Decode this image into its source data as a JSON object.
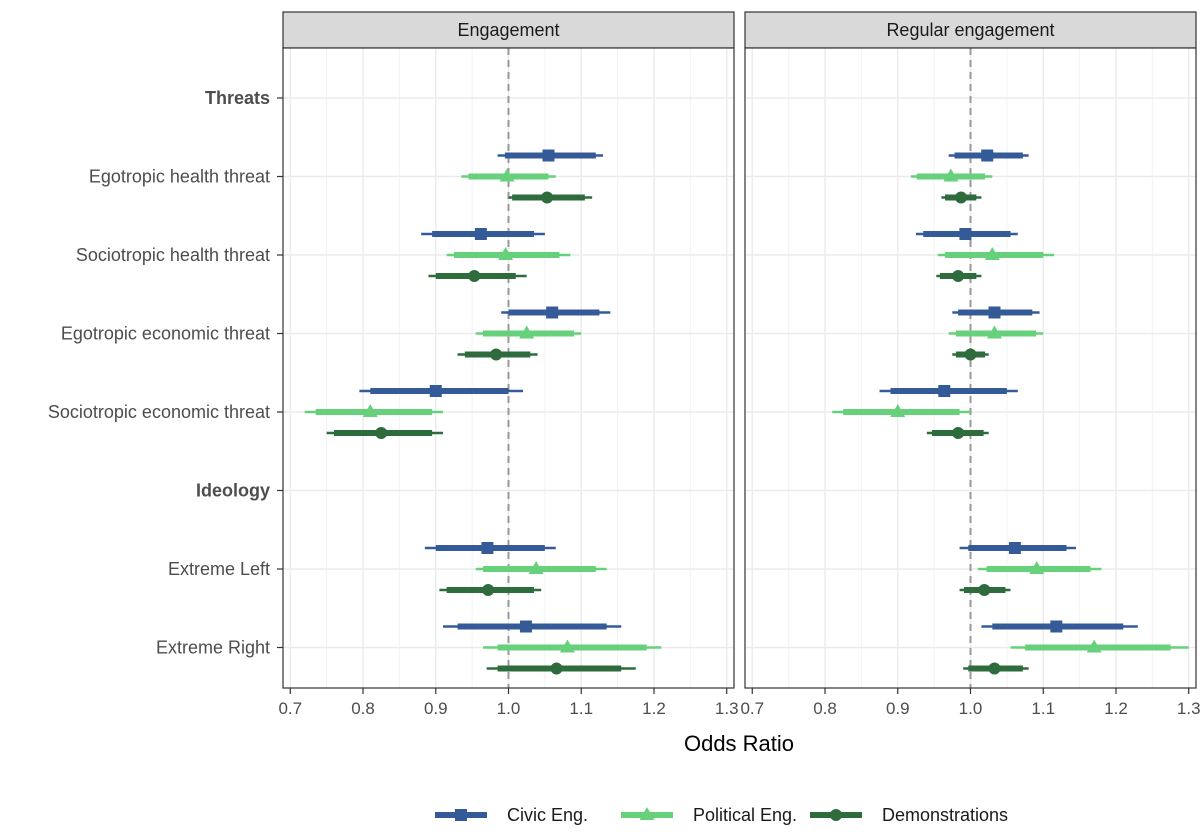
{
  "chart_data": {
    "type": "forest",
    "xlabel": "Odds Ratio",
    "xlim": [
      0.69,
      1.31
    ],
    "x_ticks": [
      0.7,
      0.8,
      0.9,
      1.0,
      1.1,
      1.2,
      1.3
    ],
    "x_tick_labels": [
      "0.7",
      "0.8",
      "0.9",
      "1.0",
      "1.1",
      "1.2",
      "1.3"
    ],
    "reference_line": 1.0,
    "grid": true,
    "legend_position": "bottom",
    "rows": [
      {
        "label": "Threats",
        "header": true
      },
      {
        "label": "Egotropic health threat",
        "header": false
      },
      {
        "label": "Sociotropic health threat",
        "header": false
      },
      {
        "label": "Egotropic economic threat",
        "header": false
      },
      {
        "label": "Sociotropic economic threat",
        "header": false
      },
      {
        "label": "Ideology",
        "header": true
      },
      {
        "label": "Extreme Left",
        "header": false
      },
      {
        "label": "Extreme Right",
        "header": false
      }
    ],
    "series": [
      {
        "name": "Civic Eng.",
        "color": "#345b97",
        "shape": "square"
      },
      {
        "name": "Political Eng.",
        "color": "#67d07a",
        "shape": "triangle"
      },
      {
        "name": "Demonstrations",
        "color": "#2e6b3d",
        "shape": "circle"
      }
    ],
    "panels": [
      {
        "title": "Engagement",
        "estimates": [
          {
            "row": 1,
            "series": 0,
            "est": 1.055,
            "lo95": 0.985,
            "hi95": 1.13,
            "lo90": 0.995,
            "hi90": 1.12
          },
          {
            "row": 1,
            "series": 1,
            "est": 0.998,
            "lo95": 0.935,
            "hi95": 1.065,
            "lo90": 0.945,
            "hi90": 1.055
          },
          {
            "row": 1,
            "series": 2,
            "est": 1.053,
            "lo95": 1.0,
            "hi95": 1.115,
            "lo90": 1.005,
            "hi90": 1.105
          },
          {
            "row": 2,
            "series": 0,
            "est": 0.962,
            "lo95": 0.88,
            "hi95": 1.05,
            "lo90": 0.895,
            "hi90": 1.035
          },
          {
            "row": 2,
            "series": 1,
            "est": 0.996,
            "lo95": 0.915,
            "hi95": 1.085,
            "lo90": 0.925,
            "hi90": 1.07
          },
          {
            "row": 2,
            "series": 2,
            "est": 0.953,
            "lo95": 0.89,
            "hi95": 1.025,
            "lo90": 0.9,
            "hi90": 1.01
          },
          {
            "row": 3,
            "series": 0,
            "est": 1.06,
            "lo95": 0.99,
            "hi95": 1.14,
            "lo90": 1.0,
            "hi90": 1.125
          },
          {
            "row": 3,
            "series": 1,
            "est": 1.025,
            "lo95": 0.955,
            "hi95": 1.1,
            "lo90": 0.965,
            "hi90": 1.09
          },
          {
            "row": 3,
            "series": 2,
            "est": 0.983,
            "lo95": 0.93,
            "hi95": 1.04,
            "lo90": 0.94,
            "hi90": 1.03
          },
          {
            "row": 4,
            "series": 0,
            "est": 0.9,
            "lo95": 0.795,
            "hi95": 1.02,
            "lo90": 0.81,
            "hi90": 1.0
          },
          {
            "row": 4,
            "series": 1,
            "est": 0.81,
            "lo95": 0.72,
            "hi95": 0.91,
            "lo90": 0.735,
            "hi90": 0.895
          },
          {
            "row": 4,
            "series": 2,
            "est": 0.825,
            "lo95": 0.75,
            "hi95": 0.91,
            "lo90": 0.76,
            "hi90": 0.895
          },
          {
            "row": 6,
            "series": 0,
            "est": 0.971,
            "lo95": 0.885,
            "hi95": 1.065,
            "lo90": 0.9,
            "hi90": 1.05
          },
          {
            "row": 6,
            "series": 1,
            "est": 1.038,
            "lo95": 0.955,
            "hi95": 1.135,
            "lo90": 0.965,
            "hi90": 1.12
          },
          {
            "row": 6,
            "series": 2,
            "est": 0.972,
            "lo95": 0.905,
            "hi95": 1.045,
            "lo90": 0.915,
            "hi90": 1.035
          },
          {
            "row": 7,
            "series": 0,
            "est": 1.024,
            "lo95": 0.91,
            "hi95": 1.155,
            "lo90": 0.93,
            "hi90": 1.135
          },
          {
            "row": 7,
            "series": 1,
            "est": 1.081,
            "lo95": 0.965,
            "hi95": 1.21,
            "lo90": 0.985,
            "hi90": 1.19
          },
          {
            "row": 7,
            "series": 2,
            "est": 1.066,
            "lo95": 0.97,
            "hi95": 1.175,
            "lo90": 0.985,
            "hi90": 1.155
          }
        ]
      },
      {
        "title": "Regular engagement",
        "estimates": [
          {
            "row": 1,
            "series": 0,
            "est": 1.023,
            "lo95": 0.97,
            "hi95": 1.08,
            "lo90": 0.978,
            "hi90": 1.072
          },
          {
            "row": 1,
            "series": 1,
            "est": 0.973,
            "lo95": 0.918,
            "hi95": 1.03,
            "lo90": 0.926,
            "hi90": 1.02
          },
          {
            "row": 1,
            "series": 2,
            "est": 0.987,
            "lo95": 0.96,
            "hi95": 1.015,
            "lo90": 0.965,
            "hi90": 1.008
          },
          {
            "row": 2,
            "series": 0,
            "est": 0.993,
            "lo95": 0.925,
            "hi95": 1.065,
            "lo90": 0.935,
            "hi90": 1.055
          },
          {
            "row": 2,
            "series": 1,
            "est": 1.03,
            "lo95": 0.955,
            "hi95": 1.115,
            "lo90": 0.965,
            "hi90": 1.1
          },
          {
            "row": 2,
            "series": 2,
            "est": 0.983,
            "lo95": 0.953,
            "hi95": 1.015,
            "lo90": 0.958,
            "hi90": 1.008
          },
          {
            "row": 3,
            "series": 0,
            "est": 1.033,
            "lo95": 0.975,
            "hi95": 1.095,
            "lo90": 0.983,
            "hi90": 1.085
          },
          {
            "row": 3,
            "series": 1,
            "est": 1.033,
            "lo95": 0.97,
            "hi95": 1.1,
            "lo90": 0.98,
            "hi90": 1.09
          },
          {
            "row": 3,
            "series": 2,
            "est": 1.0,
            "lo95": 0.975,
            "hi95": 1.025,
            "lo90": 0.98,
            "hi90": 1.02
          },
          {
            "row": 4,
            "series": 0,
            "est": 0.964,
            "lo95": 0.875,
            "hi95": 1.065,
            "lo90": 0.89,
            "hi90": 1.05
          },
          {
            "row": 4,
            "series": 1,
            "est": 0.9,
            "lo95": 0.81,
            "hi95": 1.0,
            "lo90": 0.825,
            "hi90": 0.985
          },
          {
            "row": 4,
            "series": 2,
            "est": 0.983,
            "lo95": 0.94,
            "hi95": 1.025,
            "lo90": 0.947,
            "hi90": 1.018
          },
          {
            "row": 6,
            "series": 0,
            "est": 1.061,
            "lo95": 0.985,
            "hi95": 1.145,
            "lo90": 0.997,
            "hi90": 1.132
          },
          {
            "row": 6,
            "series": 1,
            "est": 1.091,
            "lo95": 1.01,
            "hi95": 1.18,
            "lo90": 1.022,
            "hi90": 1.165
          },
          {
            "row": 6,
            "series": 2,
            "est": 1.019,
            "lo95": 0.985,
            "hi95": 1.055,
            "lo90": 0.991,
            "hi90": 1.048
          },
          {
            "row": 7,
            "series": 0,
            "est": 1.118,
            "lo95": 1.015,
            "hi95": 1.23,
            "lo90": 1.03,
            "hi90": 1.21
          },
          {
            "row": 7,
            "series": 1,
            "est": 1.17,
            "lo95": 1.055,
            "hi95": 1.3,
            "lo90": 1.075,
            "hi90": 1.275
          },
          {
            "row": 7,
            "series": 2,
            "est": 1.033,
            "lo95": 0.99,
            "hi95": 1.08,
            "lo90": 0.997,
            "hi90": 1.072
          }
        ]
      }
    ]
  }
}
